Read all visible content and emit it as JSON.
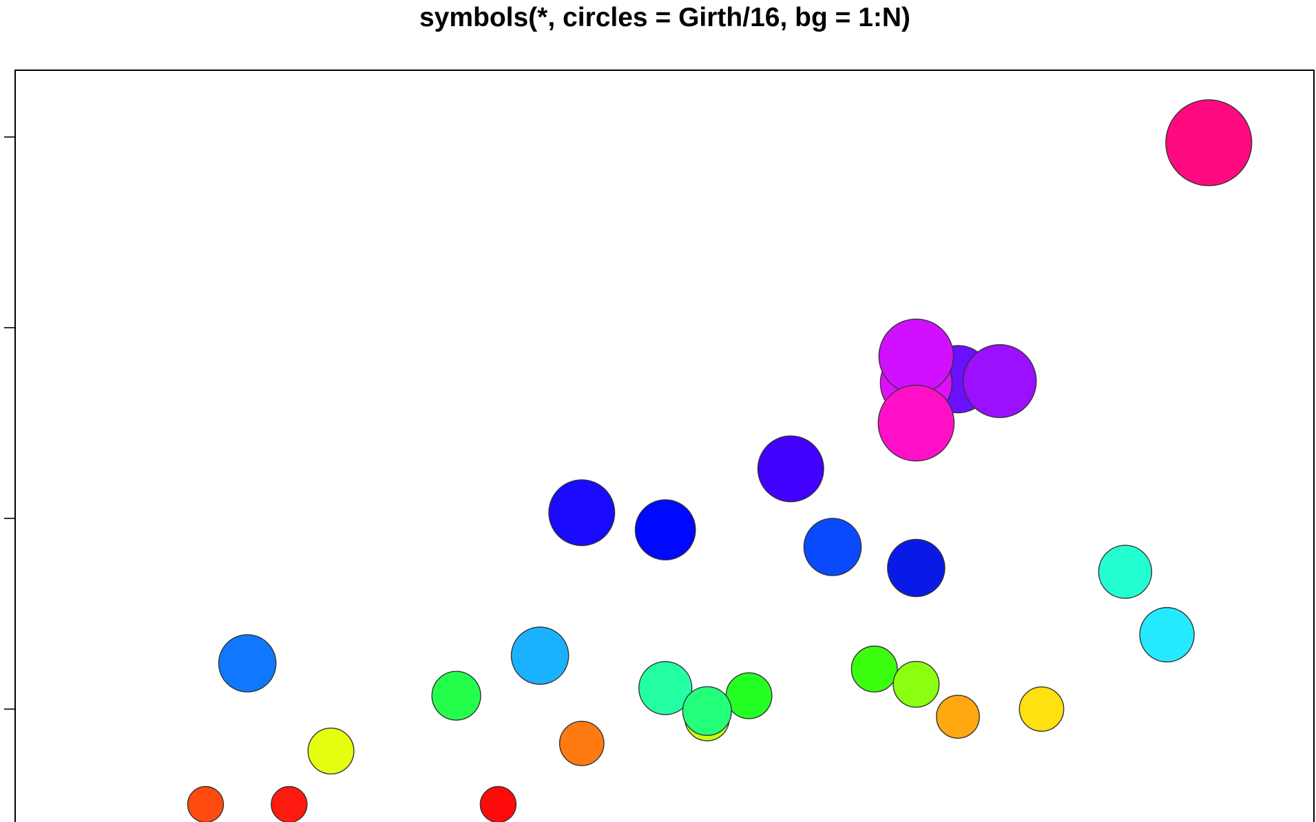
{
  "chart_data": {
    "type": "scatter",
    "title": "symbols(*, circles = Girth/16, bg = 1:N)",
    "xlabel": "",
    "ylabel": "",
    "y_ticks": [
      1,
      2,
      3,
      4
    ],
    "xlim": [
      0,
      30
    ],
    "ylim": [
      0.48,
      4.36
    ],
    "grid": false,
    "series": [
      {
        "points": [
          {
            "x": 3.5,
            "y": 0.5,
            "r": 0.5,
            "color": "#FF4A10"
          },
          {
            "x": 5.5,
            "y": 0.5,
            "r": 0.5,
            "color": "#FF1A10"
          },
          {
            "x": 10.5,
            "y": 0.5,
            "r": 0.5,
            "color": "#FF0A0A"
          },
          {
            "x": 6.5,
            "y": 0.78,
            "r": 0.64,
            "color": "#E6FF10"
          },
          {
            "x": 4.5,
            "y": 1.24,
            "r": 0.8,
            "color": "#1078FF"
          },
          {
            "x": 9.5,
            "y": 1.07,
            "r": 0.68,
            "color": "#24FF4C"
          },
          {
            "x": 11.5,
            "y": 1.28,
            "r": 0.8,
            "color": "#1AB2FF"
          },
          {
            "x": 12.5,
            "y": 0.82,
            "r": 0.62,
            "color": "#FF7A10"
          },
          {
            "x": 12.5,
            "y": 2.03,
            "r": 0.92,
            "color": "#1A0AFF"
          },
          {
            "x": 14.5,
            "y": 1.94,
            "r": 0.84,
            "color": "#0008FF"
          },
          {
            "x": 15.5,
            "y": 0.95,
            "r": 0.62,
            "color": "#C8FF10"
          },
          {
            "x": 14.5,
            "y": 1.11,
            "r": 0.74,
            "color": "#24FFA4"
          },
          {
            "x": 16.5,
            "y": 1.07,
            "r": 0.64,
            "color": "#24FF24"
          },
          {
            "x": 15.5,
            "y": 0.99,
            "r": 0.68,
            "color": "#24FF7A"
          },
          {
            "x": 17.5,
            "y": 2.26,
            "r": 0.92,
            "color": "#4200FF"
          },
          {
            "x": 18.5,
            "y": 1.85,
            "r": 0.8,
            "color": "#0A4AFF"
          },
          {
            "x": 19.5,
            "y": 1.21,
            "r": 0.64,
            "color": "#3CFF10"
          },
          {
            "x": 20.5,
            "y": 1.13,
            "r": 0.64,
            "color": "#8AFF10"
          },
          {
            "x": 20.5,
            "y": 1.74,
            "r": 0.8,
            "color": "#0A1AE6"
          },
          {
            "x": 21.5,
            "y": 0.96,
            "r": 0.6,
            "color": "#FFA810"
          },
          {
            "x": 21.5,
            "y": 2.73,
            "r": 0.94,
            "color": "#6A10FF"
          },
          {
            "x": 20.5,
            "y": 2.71,
            "r": 1.0,
            "color": "#E010FF"
          },
          {
            "x": 20.5,
            "y": 2.85,
            "r": 1.04,
            "color": "#D010FF"
          },
          {
            "x": 22.5,
            "y": 2.72,
            "r": 1.02,
            "color": "#9A10FF"
          },
          {
            "x": 20.5,
            "y": 2.5,
            "r": 1.06,
            "color": "#FF10C8"
          },
          {
            "x": 23.5,
            "y": 1.0,
            "r": 0.62,
            "color": "#FFE010"
          },
          {
            "x": 25.5,
            "y": 1.72,
            "r": 0.74,
            "color": "#24FFD2"
          },
          {
            "x": 26.5,
            "y": 1.39,
            "r": 0.76,
            "color": "#24EAFF"
          },
          {
            "x": 27.5,
            "y": 3.97,
            "r": 1.2,
            "color": "#FF0A80"
          }
        ]
      }
    ]
  }
}
